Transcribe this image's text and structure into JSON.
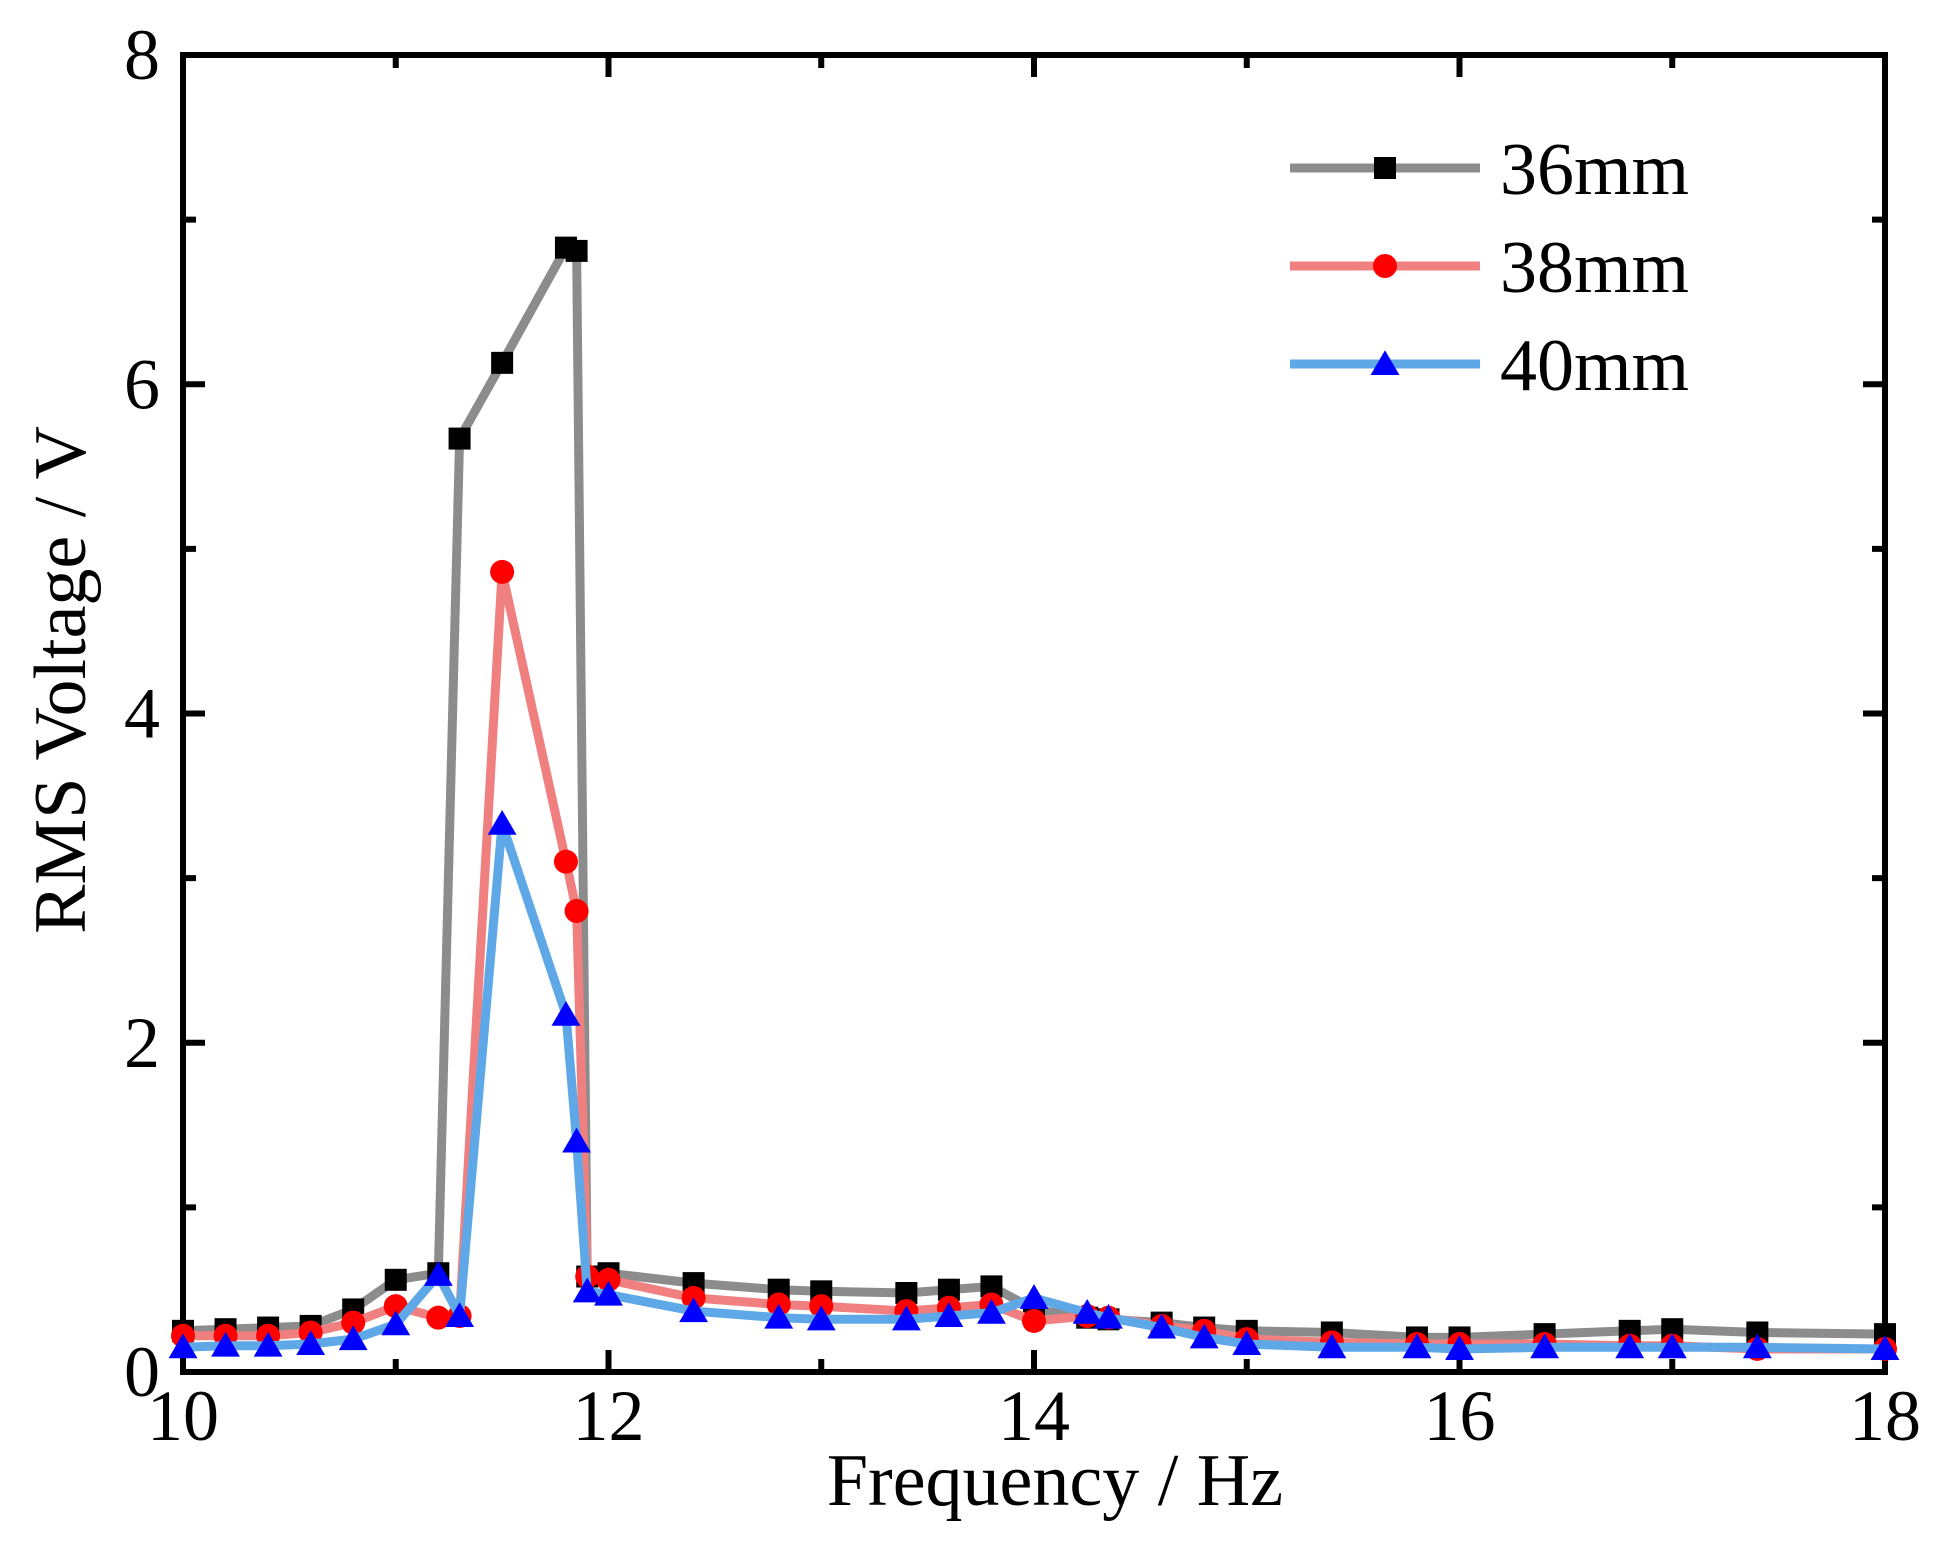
{
  "chart_data": {
    "type": "line",
    "xlabel": "Frequency / Hz",
    "ylabel": "RMS Voltage / V",
    "xlim": [
      10,
      18
    ],
    "ylim": [
      0,
      8
    ],
    "xticks": [
      "10",
      "12",
      "14",
      "16",
      "18"
    ],
    "yticks": [
      "0",
      "2",
      "4",
      "6",
      "8"
    ],
    "grid": false,
    "legend_position": "top-right",
    "series": [
      {
        "name": "36mm",
        "marker": "square",
        "line_color": "#8c8c8c",
        "marker_color": "#000000",
        "x": [
          10,
          10.2,
          10.4,
          10.6,
          10.8,
          11,
          11.2,
          11.3,
          11.5,
          11.8,
          11.85,
          11.9,
          12,
          12.4,
          12.8,
          13,
          13.4,
          13.6,
          13.8,
          14,
          14.25,
          14.35,
          14.6,
          14.8,
          15,
          15.4,
          15.8,
          16,
          16.4,
          16.8,
          17,
          17.4,
          18
        ],
        "y": [
          0.25,
          0.26,
          0.27,
          0.28,
          0.38,
          0.56,
          0.6,
          5.67,
          6.13,
          6.83,
          6.81,
          0.58,
          0.6,
          0.54,
          0.5,
          0.49,
          0.48,
          0.5,
          0.52,
          0.38,
          0.33,
          0.32,
          0.3,
          0.27,
          0.25,
          0.24,
          0.21,
          0.21,
          0.23,
          0.25,
          0.26,
          0.24,
          0.23
        ]
      },
      {
        "name": "38mm",
        "marker": "circle",
        "line_color": "#f08080",
        "marker_color": "#ff0000",
        "x": [
          10,
          10.2,
          10.4,
          10.6,
          10.8,
          11,
          11.2,
          11.3,
          11.5,
          11.8,
          11.85,
          11.9,
          12,
          12.4,
          12.8,
          13,
          13.4,
          13.6,
          13.8,
          14,
          14.25,
          14.35,
          14.6,
          14.8,
          15,
          15.4,
          15.8,
          16,
          16.4,
          16.8,
          17,
          17.4,
          18
        ],
        "y": [
          0.22,
          0.22,
          0.22,
          0.24,
          0.3,
          0.4,
          0.33,
          0.34,
          4.86,
          3.1,
          2.8,
          0.58,
          0.56,
          0.45,
          0.41,
          0.4,
          0.37,
          0.39,
          0.41,
          0.31,
          0.34,
          0.33,
          0.28,
          0.25,
          0.2,
          0.18,
          0.17,
          0.17,
          0.17,
          0.16,
          0.16,
          0.14,
          0.14
        ]
      },
      {
        "name": "40mm",
        "marker": "triangle",
        "line_color": "#5fa8e8",
        "marker_color": "#0000ff",
        "x": [
          10,
          10.2,
          10.4,
          10.6,
          10.8,
          11,
          11.2,
          11.3,
          11.5,
          11.8,
          11.85,
          11.9,
          12,
          12.4,
          12.8,
          13,
          13.4,
          13.6,
          13.8,
          14,
          14.25,
          14.35,
          14.6,
          14.8,
          15,
          15.4,
          15.8,
          16,
          16.4,
          16.8,
          17,
          17.4,
          18
        ],
        "y": [
          0.15,
          0.16,
          0.16,
          0.17,
          0.2,
          0.29,
          0.59,
          0.34,
          3.33,
          2.17,
          1.4,
          0.49,
          0.47,
          0.37,
          0.33,
          0.32,
          0.32,
          0.34,
          0.36,
          0.45,
          0.36,
          0.33,
          0.27,
          0.21,
          0.17,
          0.15,
          0.15,
          0.14,
          0.15,
          0.15,
          0.15,
          0.15,
          0.14
        ]
      }
    ]
  }
}
